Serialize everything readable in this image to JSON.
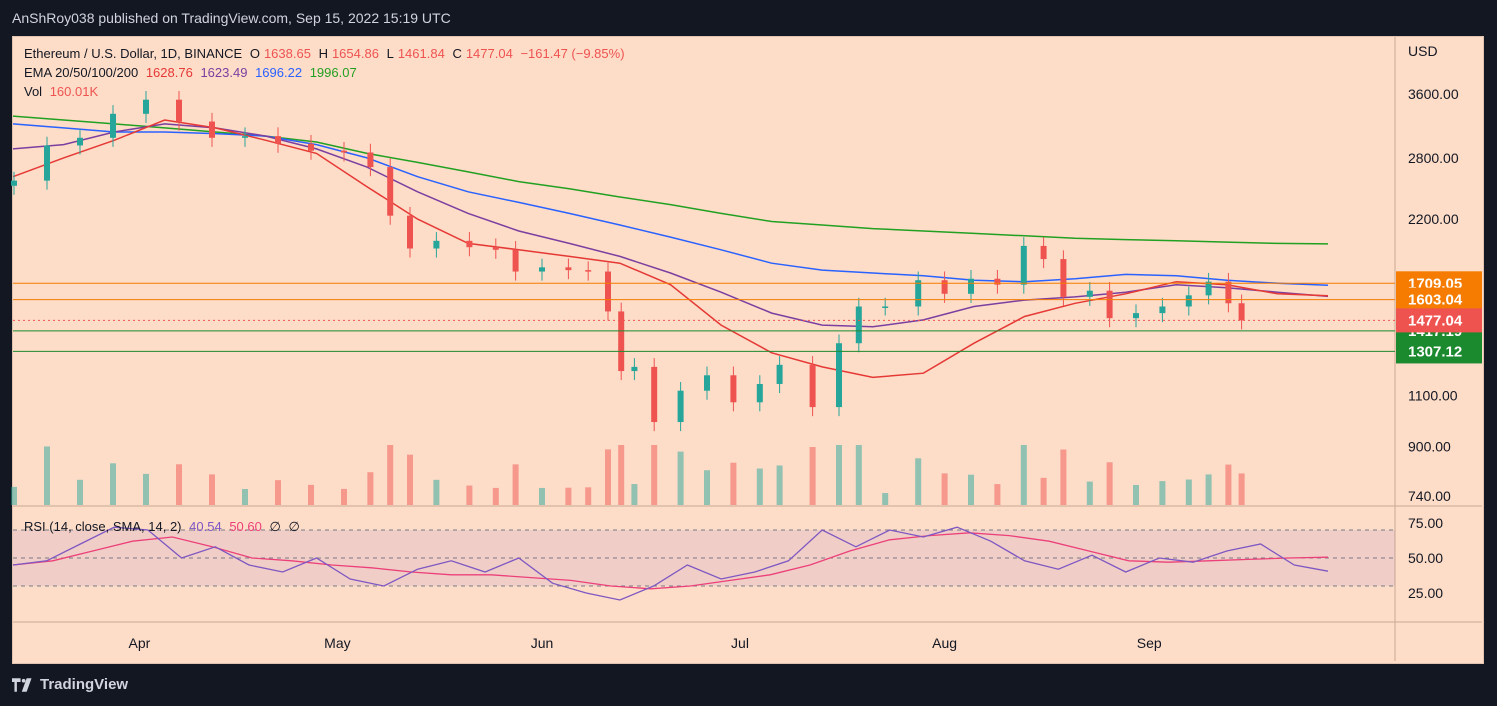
{
  "header": {
    "published_text": "AnShRoy038 published on TradingView.com, Sep 15, 2022 15:19 UTC"
  },
  "footer": {
    "brand": "TradingView"
  },
  "legend": {
    "symbol": "Ethereum / U.S. Dollar, 1D, BINANCE",
    "o_label": "O",
    "o": "1638.65",
    "h_label": "H",
    "h": "1654.86",
    "l_label": "L",
    "l": "1461.84",
    "c_label": "C",
    "c": "1477.04",
    "change": "−161.47 (−9.85%)",
    "ema_label": "EMA 20/50/100/200",
    "ema20": "1628.76",
    "ema50": "1623.49",
    "ema100": "1696.22",
    "ema200": "1996.07",
    "vol_label": "Vol",
    "vol": "160.01K"
  },
  "rsi_legend": {
    "label": "RSI (14, close, SMA, 14, 2)",
    "rsi": "40.54",
    "sma": "50.60",
    "na1": "∅",
    "na2": "∅"
  },
  "colors": {
    "bg": "#fddcc8",
    "up": "#26a69a",
    "down": "#ef5350",
    "ema20": "#e53935",
    "ema50": "#7b3fa0",
    "ema100": "#2962ff",
    "ema200": "#22a022",
    "orange": "#f57c00",
    "green_line": "#1b8a2e",
    "rsi": "#7e57c2",
    "rsi_sma": "#ec407a"
  },
  "chart_data": {
    "type": "candlestick",
    "title": "Ethereum / U.S. Dollar, 1D, BINANCE",
    "currency": "USD",
    "y_scale": "log",
    "y_ticks": [
      "3600.00",
      "2800.00",
      "2200.00",
      "1100.00",
      "900.00",
      "740.00"
    ],
    "x_labels": [
      "Apr",
      "May",
      "Jun",
      "Jul",
      "Aug",
      "Sep"
    ],
    "horizontal_levels": [
      {
        "value": 1709.05,
        "label": "1709.05",
        "color": "orange"
      },
      {
        "value": 1603.04,
        "label": "1603.04",
        "color": "orange"
      },
      {
        "value": 1417.19,
        "label": "1417.19",
        "color": "green"
      },
      {
        "value": 1307.12,
        "label": "1307.12",
        "color": "green"
      }
    ],
    "last_price": {
      "value": 1477.04,
      "label": "1477.04"
    },
    "close_points": [
      {
        "d": "Mar 13",
        "c": 2560
      },
      {
        "d": "Mar 18",
        "c": 2940
      },
      {
        "d": "Mar 23",
        "c": 3030
      },
      {
        "d": "Mar 28",
        "c": 3330
      },
      {
        "d": "Apr 2",
        "c": 3520
      },
      {
        "d": "Apr 7",
        "c": 3230
      },
      {
        "d": "Apr 12",
        "c": 3030
      },
      {
        "d": "Apr 17",
        "c": 3050
      },
      {
        "d": "Apr 22",
        "c": 2960
      },
      {
        "d": "Apr 27",
        "c": 2880
      },
      {
        "d": "May 2",
        "c": 2860
      },
      {
        "d": "May 6",
        "c": 2700
      },
      {
        "d": "May 9",
        "c": 2230
      },
      {
        "d": "May 12",
        "c": 1960
      },
      {
        "d": "May 16",
        "c": 2020
      },
      {
        "d": "May 21",
        "c": 1970
      },
      {
        "d": "May 25",
        "c": 1950
      },
      {
        "d": "May 28",
        "c": 1790
      },
      {
        "d": "Jun 1",
        "c": 1820
      },
      {
        "d": "Jun 5",
        "c": 1800
      },
      {
        "d": "Jun 8",
        "c": 1790
      },
      {
        "d": "Jun 11",
        "c": 1530
      },
      {
        "d": "Jun 13",
        "c": 1210
      },
      {
        "d": "Jun 15",
        "c": 1230
      },
      {
        "d": "Jun 18",
        "c": 990
      },
      {
        "d": "Jun 22",
        "c": 1120
      },
      {
        "d": "Jun 26",
        "c": 1190
      },
      {
        "d": "Jun 30",
        "c": 1070
      },
      {
        "d": "Jul 4",
        "c": 1150
      },
      {
        "d": "Jul 7",
        "c": 1240
      },
      {
        "d": "Jul 12",
        "c": 1050
      },
      {
        "d": "Jul 16",
        "c": 1350
      },
      {
        "d": "Jul 19",
        "c": 1560
      },
      {
        "d": "Jul 23",
        "c": 1560
      },
      {
        "d": "Jul 28",
        "c": 1730
      },
      {
        "d": "Aug 1",
        "c": 1640
      },
      {
        "d": "Aug 5",
        "c": 1740
      },
      {
        "d": "Aug 9",
        "c": 1700
      },
      {
        "d": "Aug 13",
        "c": 1980
      },
      {
        "d": "Aug 16",
        "c": 1880
      },
      {
        "d": "Aug 19",
        "c": 1620
      },
      {
        "d": "Aug 23",
        "c": 1660
      },
      {
        "d": "Aug 26",
        "c": 1490
      },
      {
        "d": "Aug 30",
        "c": 1520
      },
      {
        "d": "Sep 3",
        "c": 1560
      },
      {
        "d": "Sep 7",
        "c": 1630
      },
      {
        "d": "Sep 10",
        "c": 1720
      },
      {
        "d": "Sep 13",
        "c": 1580
      },
      {
        "d": "Sep 15",
        "c": 1477
      }
    ],
    "ema20": [
      2600,
      2800,
      3000,
      3250,
      3150,
      3000,
      2850,
      2500,
      2200,
      2000,
      1950,
      1900,
      1850,
      1700,
      1450,
      1300,
      1230,
      1180,
      1200,
      1350,
      1500,
      1580,
      1640,
      1720,
      1700,
      1640,
      1628
    ],
    "ema50": [
      2900,
      2950,
      3100,
      3200,
      3150,
      3050,
      2900,
      2700,
      2450,
      2250,
      2100,
      2000,
      1900,
      1780,
      1650,
      1520,
      1450,
      1440,
      1480,
      1560,
      1600,
      1620,
      1650,
      1700,
      1680,
      1650,
      1623
    ],
    "ema100": [
      3200,
      3150,
      3100,
      3100,
      3080,
      3050,
      2950,
      2800,
      2600,
      2450,
      2350,
      2250,
      2150,
      2050,
      1950,
      1850,
      1800,
      1780,
      1760,
      1730,
      1720,
      1740,
      1770,
      1760,
      1730,
      1710,
      1696
    ],
    "ema200": [
      3300,
      3250,
      3200,
      3150,
      3100,
      3050,
      2980,
      2850,
      2750,
      2650,
      2550,
      2480,
      2400,
      2330,
      2250,
      2180,
      2150,
      2120,
      2100,
      2080,
      2060,
      2040,
      2030,
      2020,
      2010,
      2000,
      1996
    ],
    "rsi_y_ticks": [
      "75.00",
      "50.00",
      "25.00"
    ],
    "rsi": [
      45,
      48,
      60,
      72,
      70,
      50,
      58,
      45,
      40,
      50,
      35,
      30,
      42,
      48,
      40,
      50,
      32,
      25,
      20,
      30,
      45,
      35,
      40,
      48,
      70,
      58,
      70,
      65,
      72,
      62,
      48,
      42,
      52,
      40,
      50,
      47,
      55,
      60,
      45,
      40.54
    ],
    "rsi_sma": [
      45,
      48,
      55,
      62,
      65,
      58,
      50,
      48,
      45,
      43,
      40,
      38,
      38,
      36,
      34,
      30,
      28,
      30,
      34,
      38,
      45,
      55,
      63,
      66,
      68,
      66,
      62,
      55,
      48,
      47,
      48,
      49,
      50,
      50.6
    ]
  }
}
